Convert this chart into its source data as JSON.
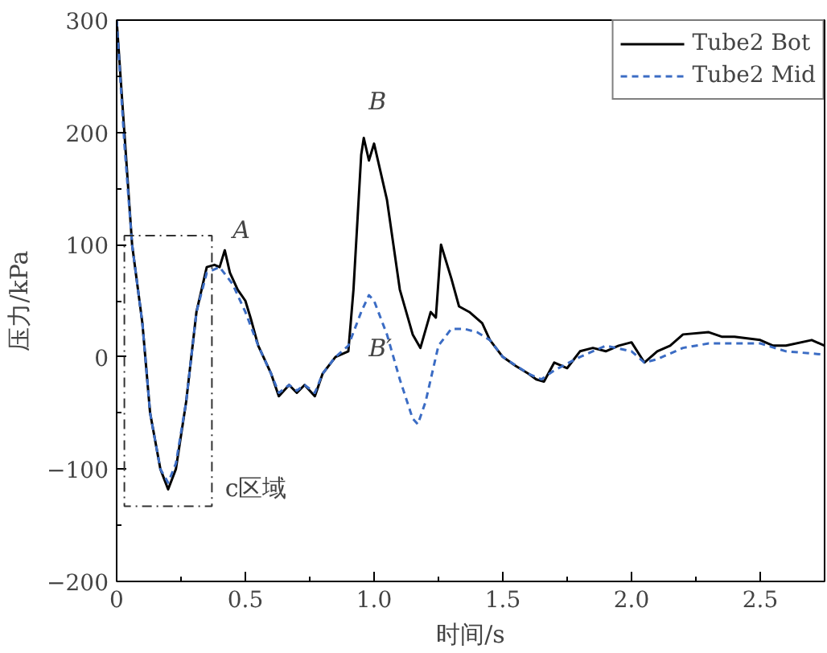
{
  "chart_data": {
    "type": "line",
    "xlabel": "时间/s",
    "ylabel": "压力/kPa",
    "xlim": [
      0,
      2.75
    ],
    "ylim": [
      -200,
      300
    ],
    "xticks": [
      0,
      0.5,
      {
        "value": 1,
        "label": "1.0"
      },
      1.5,
      {
        "value": 2,
        "label": "2.0"
      },
      2.5
    ],
    "yticks": [
      -200,
      -100,
      0,
      100,
      200,
      300
    ],
    "legend": "top right",
    "grid": false,
    "annotations": [
      "A",
      "B",
      "B′",
      "c区域"
    ],
    "series": [
      {
        "name": "Tube2 Bot",
        "color": "#000000",
        "line_style": "solid",
        "x": [
          0,
          0.03,
          0.06,
          0.1,
          0.13,
          0.17,
          0.2,
          0.23,
          0.27,
          0.31,
          0.35,
          0.38,
          0.4,
          0.42,
          0.44,
          0.47,
          0.5,
          0.52,
          0.55,
          0.6,
          0.63,
          0.67,
          0.7,
          0.73,
          0.77,
          0.8,
          0.85,
          0.9,
          0.92,
          0.95,
          0.96,
          0.98,
          1.0,
          1.05,
          1.1,
          1.15,
          1.18,
          1.22,
          1.24,
          1.26,
          1.3,
          1.33,
          1.37,
          1.42,
          1.45,
          1.5,
          1.55,
          1.6,
          1.63,
          1.66,
          1.7,
          1.75,
          1.8,
          1.85,
          1.9,
          1.95,
          2.0,
          2.05,
          2.1,
          2.15,
          2.2,
          2.3,
          2.35,
          2.4,
          2.5,
          2.55,
          2.6,
          2.7,
          2.75
        ],
        "values": [
          300,
          200,
          100,
          30,
          -50,
          -100,
          -118,
          -100,
          -40,
          40,
          80,
          82,
          80,
          95,
          75,
          60,
          50,
          35,
          10,
          -15,
          -35,
          -25,
          -32,
          -25,
          -35,
          -15,
          0,
          5,
          60,
          180,
          195,
          175,
          190,
          140,
          60,
          20,
          8,
          40,
          35,
          100,
          70,
          45,
          40,
          30,
          15,
          0,
          -8,
          -15,
          -20,
          -22,
          -5,
          -10,
          5,
          8,
          5,
          10,
          13,
          -5,
          5,
          10,
          20,
          22,
          18,
          18,
          15,
          10,
          10,
          15,
          10
        ]
      },
      {
        "name": "Tube2 Mid",
        "color": "#3b6cc4",
        "line_style": "dashed",
        "x": [
          0,
          0.03,
          0.06,
          0.1,
          0.13,
          0.17,
          0.2,
          0.23,
          0.27,
          0.31,
          0.35,
          0.4,
          0.45,
          0.5,
          0.55,
          0.6,
          0.63,
          0.67,
          0.7,
          0.73,
          0.77,
          0.8,
          0.85,
          0.9,
          0.95,
          0.98,
          1.0,
          1.05,
          1.1,
          1.15,
          1.17,
          1.2,
          1.25,
          1.3,
          1.35,
          1.4,
          1.45,
          1.5,
          1.6,
          1.65,
          1.7,
          1.8,
          1.9,
          2.0,
          2.05,
          2.1,
          2.2,
          2.3,
          2.5,
          2.6,
          2.75
        ],
        "values": [
          300,
          190,
          100,
          30,
          -50,
          -100,
          -112,
          -95,
          -40,
          40,
          75,
          80,
          65,
          40,
          10,
          -15,
          -32,
          -25,
          -30,
          -25,
          -32,
          -15,
          0,
          10,
          40,
          55,
          50,
          20,
          -20,
          -55,
          -60,
          -40,
          10,
          25,
          25,
          22,
          15,
          0,
          -15,
          -20,
          -12,
          0,
          10,
          5,
          -5,
          -2,
          8,
          12,
          12,
          5,
          2
        ]
      }
    ]
  }
}
